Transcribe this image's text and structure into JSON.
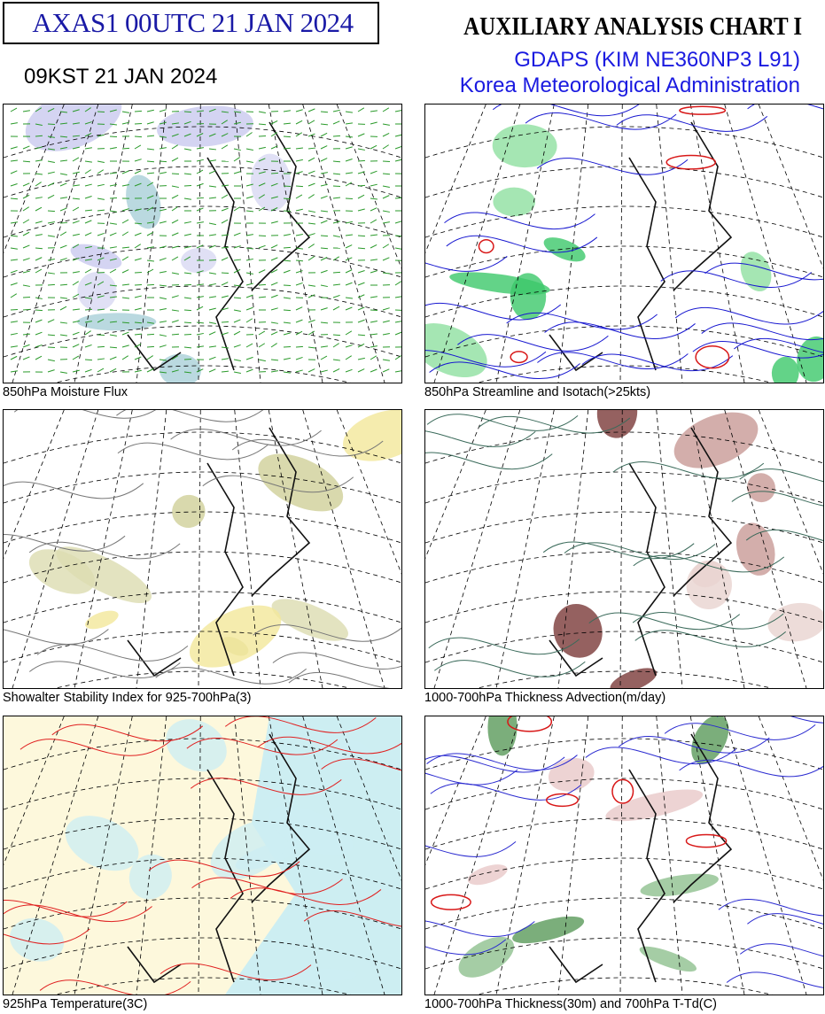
{
  "header": {
    "code": "AXAS1  00UTC 21 JAN 2024",
    "valid_time": "09KST 21 JAN 2024",
    "title": "AUXILIARY ANALYSIS CHART  I",
    "model": "GDAPS (KIM NE360NP3 L91)",
    "agency": "Korea Meteorological Administration"
  },
  "panels": [
    {
      "caption": "850hPa Moisture Flux"
    },
    {
      "caption": "850hPa Streamline and Isotach(>25kts)"
    },
    {
      "caption": "Showalter Stability Index for 925-700hPa(3)"
    },
    {
      "caption": "1000-700hPa Thickness Advection(m/day)"
    },
    {
      "caption": "925hPa Temperature(3C)"
    },
    {
      "caption": "1000-700hPa Thickness(30m) and 700hPa T-Td(C)"
    }
  ]
}
